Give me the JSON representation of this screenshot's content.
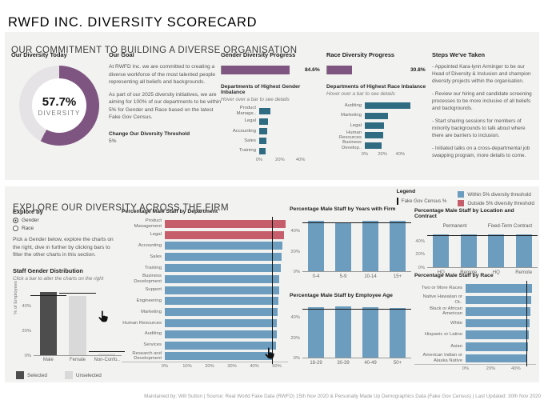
{
  "page": {
    "title": "RWFD INC. DIVERSITY SCORECARD",
    "footer": "Maintained by: Will Sutton | Source: Real World Fake Data (RWFD) 15th Nov 2020 & Personally Made Up Demographics Data (Fake Gov Census) | Last Updated: 30th Nov 2020"
  },
  "colors": {
    "purple": "#7E5581",
    "donut_rest": "#E5E3E5",
    "within": "#6C9DBE",
    "outside": "#C65D6B",
    "teal": "#2F6B81",
    "selected": "#4D4D4D",
    "unselected": "#D9D9D9",
    "census": "#1A1A1A"
  },
  "commitment": {
    "header": "OUR COMMITMENT TO BUILDING A DIVERSE ORGANISATION",
    "diversity_today": {
      "title": "Our Diversity Today",
      "value": "57.7%",
      "label": "DIVERSITY"
    },
    "goal": {
      "title": "Our Goal",
      "p1": "At RWFD Inc. we are committed to creating a diverse workforce of the most talented people representing all beliefs and backgrounds.",
      "p2": "As part of our 2025 diversity initiatives, we are aiming for 100% of our departments to be within 5% for Gender and Race based on the latest Fake Gov Census.",
      "threshold_label": "Change Our Diversity Threshold",
      "threshold_value": "5%"
    },
    "gender_progress": {
      "title": "Gender Diversity Progress",
      "value_label": "84.6%"
    },
    "race_progress": {
      "title": "Race Diversity Progress",
      "value_label": "30.8%"
    },
    "gender_inbalance": {
      "title": "Departments of Highest Gender Inbalance",
      "hint": "Hover over a bar to see details"
    },
    "race_inbalance": {
      "title": "Departments of Highest Race Inbalance",
      "hint": "Hover over a bar to see details"
    },
    "steps": {
      "title": "Steps We've Taken",
      "items": [
        "- Appointed Kara-lynn Arminger to be our Head of Diversity & Inclusion and champion diversity projects within the organisation.",
        "- Review our hiring and candidate screening processes to be more inclusive of all beliefs and backgrounds.",
        "- Start sharing sessions for members of minority backgrounds to talk about where there are barriers to inclusion.",
        "- Initiated talks on a cross-departmental job swapping program, more details to come."
      ]
    }
  },
  "explore": {
    "header": "EXPLORE OUR DIVERSITY ACROSS THE FIRM",
    "legend": {
      "title": "Legend",
      "census_label": "Fake Gov Census %",
      "within_label": "Within 5% diversity threshold",
      "outside_label": "Outside 5% diversity threshold"
    },
    "explore_by": {
      "label": "Explore by",
      "options": [
        {
          "label": "Gender",
          "selected": true
        },
        {
          "label": "Race",
          "selected": false
        }
      ]
    },
    "instructions": "Pick a Gender below, explore the charts on the right, dive in further by clicking bars to filter the other charts in this section.",
    "gender_dist": {
      "title": "Staff Gender Distribution",
      "hint": "Click a bar to alter the charts on the right",
      "legend": [
        "Selected",
        "Unselected"
      ]
    },
    "by_department": {
      "title": "Percentage Male Staff by Department"
    },
    "by_years": {
      "title": "Percentage Male Staff by Years with Firm"
    },
    "by_age": {
      "title": "Percentage Male Staff by Employee Age"
    },
    "by_location": {
      "title": "Percentage Male Staff by Location and Contract"
    },
    "by_race": {
      "title": "Percentage Male Staff by Race"
    }
  },
  "chart_data": [
    {
      "id": "diversity_donut",
      "type": "pie",
      "title": "Our Diversity Today",
      "labels": [
        "Diversity",
        "Remainder"
      ],
      "values": [
        57.7,
        42.3
      ],
      "center_value": 57.7
    },
    {
      "id": "gender_progress",
      "type": "bar",
      "title": "Gender Diversity Progress",
      "value": 84.6,
      "max": 100
    },
    {
      "id": "race_progress",
      "type": "bar",
      "title": "Race Diversity Progress",
      "value": 30.8,
      "max": 100
    },
    {
      "id": "gender_inbalance",
      "type": "bar",
      "orientation": "horizontal",
      "title": "Departments of Highest Gender Inbalance",
      "categories": [
        "Product Manage..",
        "Legal",
        "Accounting",
        "Sales",
        "Training"
      ],
      "values": [
        10.5,
        8.5,
        8.0,
        7.0,
        6.2
      ],
      "xticks": [
        0,
        20,
        40
      ],
      "xlim": [
        0,
        48
      ],
      "bar_color": "teal"
    },
    {
      "id": "race_inbalance",
      "type": "bar",
      "orientation": "horizontal",
      "title": "Departments of Highest Race Inbalance",
      "categories": [
        "Auditing",
        "Marketing",
        "Legal",
        "Human Resources",
        "Business Develop.."
      ],
      "values": [
        51.5,
        26.0,
        21.5,
        20.5,
        19.0
      ],
      "xticks": [
        0,
        20,
        40
      ],
      "xlim": [
        0,
        56
      ],
      "bar_color": "teal"
    },
    {
      "id": "staff_gender",
      "type": "bar",
      "title": "Staff Gender Distribution",
      "ylabel": "% of Employees",
      "categories": [
        "Male",
        "Female",
        "Non-Confo.."
      ],
      "values": [
        52.0,
        48.2,
        1.2
      ],
      "census": [
        48.6,
        50.2,
        2.5
      ],
      "selected": [
        true,
        false,
        false
      ],
      "yticks": [
        0,
        20,
        40
      ],
      "ylim": [
        0,
        56
      ]
    },
    {
      "id": "by_department",
      "type": "bar",
      "orientation": "horizontal",
      "title": "Percentage Male Staff by Department",
      "categories": [
        "Product Management",
        "Legal",
        "Accounting",
        "Sales",
        "Training",
        "Business Development",
        "Support",
        "Engineering",
        "Marketing",
        "Human Resources",
        "Auditing",
        "Services",
        "Research and Development"
      ],
      "values": [
        54.0,
        53.2,
        52.6,
        52.2,
        51.7,
        51.2,
        51.0,
        50.6,
        50.4,
        50.1,
        50.0,
        49.5,
        48.2
      ],
      "outside": [
        true,
        true,
        false,
        false,
        false,
        false,
        false,
        false,
        false,
        false,
        false,
        false,
        false
      ],
      "census": 47.7,
      "xticks": [
        0,
        10,
        20,
        30,
        40,
        50
      ],
      "xlim": [
        0,
        55
      ]
    },
    {
      "id": "by_years",
      "type": "bar",
      "title": "Percentage Male Staff by Years with Firm",
      "categories": [
        "0-4",
        "5-9",
        "10-14",
        "15+"
      ],
      "values": [
        50.3,
        48.9,
        50.2,
        50.5
      ],
      "census": 48.0,
      "yticks": [
        0,
        20,
        40
      ],
      "ylim": [
        0,
        55
      ]
    },
    {
      "id": "by_age",
      "type": "bar",
      "title": "Percentage Male Staff by Employee Age",
      "categories": [
        "18-29",
        "30-39",
        "40-49",
        "50+"
      ],
      "values": [
        50.1,
        51.0,
        50.4,
        49.5
      ],
      "census": 48.0,
      "yticks": [
        0,
        20,
        40
      ],
      "ylim": [
        0,
        55
      ]
    },
    {
      "id": "by_location",
      "type": "bar",
      "title": "Percentage Male Staff by Location and Contract",
      "groups": [
        "Permanent",
        "Fixed-Term Contract"
      ],
      "categories": [
        "HQ",
        "Remote",
        "HQ",
        "Remote"
      ],
      "values": [
        50.6,
        50.2,
        50.5,
        49.8
      ],
      "census": 48.0,
      "yticks": [
        0,
        20,
        40
      ],
      "ylim": [
        0,
        55
      ]
    },
    {
      "id": "by_race",
      "type": "bar",
      "orientation": "horizontal",
      "title": "Percentage Male Staff by Race",
      "categories": [
        "Two or More Races",
        "Native Hawaiian or Ot..",
        "Black or African American",
        "White",
        "Hispanic or Latino",
        "Asian",
        "American Indian or Alaska Native"
      ],
      "values": [
        52.5,
        52.0,
        51.5,
        51.2,
        50.5,
        49.8,
        49.2
      ],
      "census": 48.3,
      "xticks": [
        0,
        20,
        40
      ],
      "xlim": [
        0,
        56
      ]
    }
  ]
}
